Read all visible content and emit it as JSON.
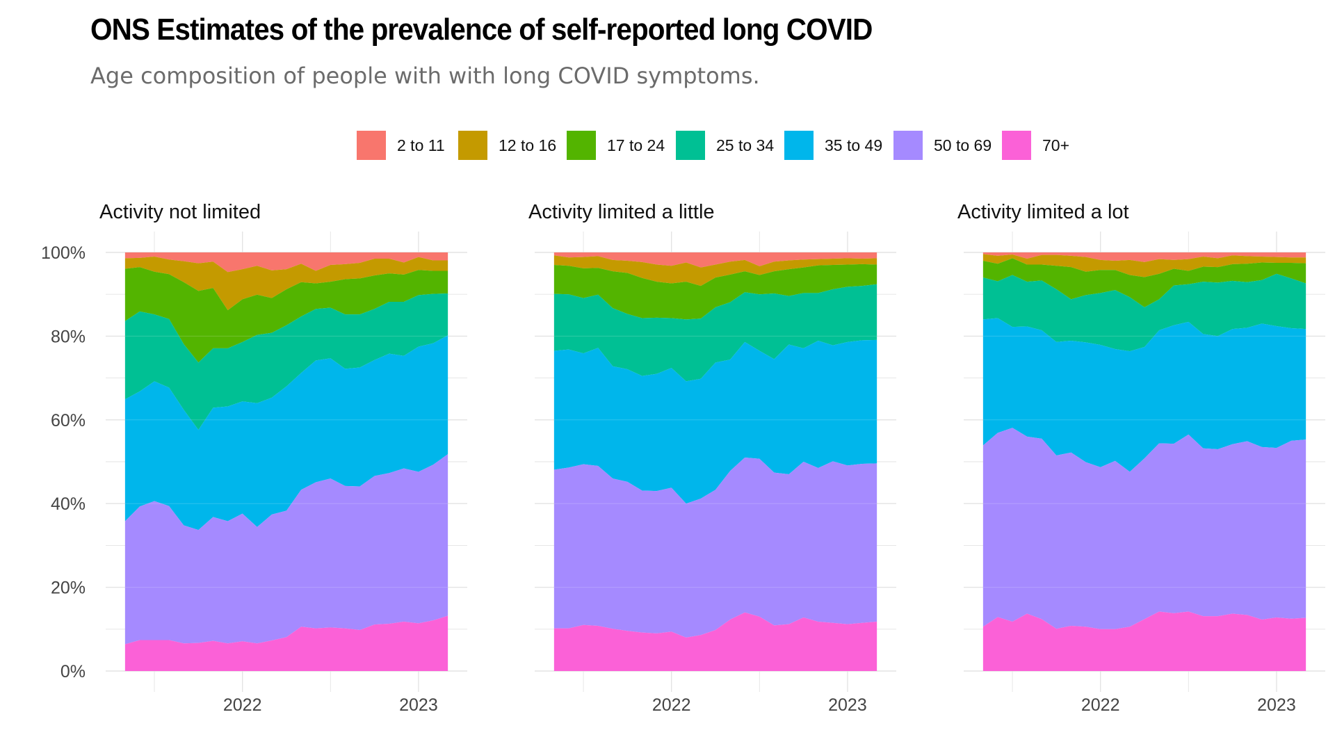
{
  "title": "ONS Estimates of the prevalence of self-reported long COVID",
  "subtitle": "Age composition of people with with long COVID symptoms.",
  "chart_data": {
    "type": "area",
    "stacked_percent": true,
    "legend_position": "top",
    "grid": true,
    "ylim": [
      0,
      100
    ],
    "y_ticks": [
      "0%",
      "20%",
      "40%",
      "60%",
      "80%",
      "100%"
    ],
    "x_ticks": [
      "2022",
      "2023"
    ],
    "x": [
      "2021-05",
      "2021-06",
      "2021-07",
      "2021-08",
      "2021-09",
      "2021-10",
      "2021-11",
      "2021-12",
      "2022-01",
      "2022-02",
      "2022-03",
      "2022-04",
      "2022-05",
      "2022-06",
      "2022-07",
      "2022-08",
      "2022-09",
      "2022-10",
      "2022-11",
      "2022-12",
      "2023-01",
      "2023-02",
      "2023-03"
    ],
    "series": [
      {
        "name": "2 to 11",
        "color": "#F8766D"
      },
      {
        "name": "12 to 16",
        "color": "#C49A00"
      },
      {
        "name": "17 to 24",
        "color": "#53B400"
      },
      {
        "name": "25 to 34",
        "color": "#00C094"
      },
      {
        "name": "35 to 49",
        "color": "#00B6EB"
      },
      {
        "name": "50 to 69",
        "color": "#A58AFF"
      },
      {
        "name": "70+",
        "color": "#FB61D7"
      }
    ],
    "panels": [
      {
        "title": "Activity not limited",
        "cumulative": {
          "70+": [
            6.4,
            7.4,
            7.4,
            7.4,
            6.6,
            6.7,
            7.2,
            6.6,
            7.1,
            6.6,
            7.3,
            8.1,
            10.6,
            10.2,
            10.4,
            10.2,
            9.8,
            11.1,
            11.3,
            11.8,
            11.4,
            12.1,
            13.2
          ],
          "50 to 69": [
            35.8,
            39.3,
            40.6,
            39.4,
            34.8,
            33.7,
            36.8,
            35.8,
            37.6,
            34.4,
            37.4,
            38.3,
            43.3,
            45.1,
            46.0,
            44.2,
            44.1,
            46.6,
            47.3,
            48.4,
            47.6,
            49.3,
            51.8
          ],
          "35 to 49": [
            64.9,
            66.8,
            69.2,
            67.7,
            62.4,
            57.6,
            62.9,
            63.2,
            64.4,
            64.0,
            65.3,
            68.0,
            71.2,
            74.2,
            74.7,
            72.2,
            72.5,
            74.3,
            75.8,
            75.3,
            77.5,
            78.3,
            80.2
          ],
          "25 to 34": [
            83.6,
            85.9,
            85.2,
            84.1,
            78.1,
            73.7,
            77.1,
            77.1,
            78.6,
            80.3,
            80.8,
            82.6,
            84.7,
            86.5,
            86.8,
            85.2,
            85.2,
            86.5,
            88.2,
            88.2,
            89.8,
            90.1,
            90.2
          ],
          "17 to 24": [
            96.1,
            96.5,
            95.4,
            94.8,
            92.9,
            90.8,
            91.5,
            86.2,
            88.8,
            89.9,
            89.1,
            91.2,
            92.9,
            92.6,
            93.0,
            93.6,
            93.8,
            94.5,
            95.0,
            94.7,
            95.8,
            95.6,
            95.6
          ],
          "12 to 16": [
            98.6,
            98.7,
            99.0,
            98.3,
            97.9,
            97.4,
            97.8,
            95.3,
            96.0,
            96.8,
            95.7,
            96.0,
            97.3,
            95.6,
            97.0,
            97.2,
            97.5,
            98.5,
            98.5,
            97.6,
            98.9,
            98.1,
            98.1
          ],
          "2 to 11": [
            100,
            100,
            100,
            100,
            100,
            100,
            100,
            100,
            100,
            100,
            100,
            100,
            100,
            100,
            100,
            100,
            100,
            100,
            100,
            100,
            100,
            100,
            100
          ]
        }
      },
      {
        "title": "Activity limited a little",
        "cumulative": {
          "70+": [
            10.2,
            10.2,
            11.0,
            10.8,
            10.1,
            9.6,
            9.2,
            9.0,
            9.4,
            8.0,
            8.6,
            9.8,
            12.3,
            14.0,
            13.0,
            10.9,
            11.2,
            12.8,
            11.8,
            11.5,
            11.2,
            11.5,
            11.8
          ],
          "50 to 69": [
            48.1,
            48.6,
            49.4,
            49.0,
            46.0,
            45.2,
            43.1,
            43.0,
            43.8,
            40.0,
            41.2,
            43.3,
            47.8,
            51.0,
            50.7,
            47.4,
            47.0,
            50.0,
            48.5,
            50.1,
            49.1,
            49.5,
            49.6
          ],
          "35 to 49": [
            76.5,
            76.8,
            75.9,
            77.2,
            72.8,
            72.1,
            70.5,
            71.0,
            72.4,
            69.2,
            69.8,
            73.7,
            74.4,
            78.6,
            76.5,
            74.5,
            78.0,
            77.1,
            78.9,
            77.8,
            78.6,
            79.0,
            79.1
          ],
          "25 to 34": [
            90.1,
            90.0,
            89.1,
            89.9,
            86.7,
            85.3,
            84.3,
            84.4,
            84.3,
            84.0,
            84.2,
            86.9,
            88.1,
            90.5,
            90.0,
            90.2,
            89.6,
            90.3,
            90.3,
            91.2,
            91.8,
            92.0,
            92.4
          ],
          "17 to 24": [
            97.0,
            96.8,
            96.2,
            96.3,
            95.5,
            95.1,
            93.9,
            93.0,
            92.6,
            93.0,
            92.0,
            94.0,
            94.7,
            95.5,
            94.6,
            95.5,
            96.0,
            96.4,
            96.9,
            97.0,
            97.1,
            97.2,
            97.1
          ],
          "12 to 16": [
            99.3,
            98.8,
            98.9,
            99.1,
            98.2,
            98.0,
            97.7,
            97.1,
            96.8,
            97.6,
            96.4,
            97.1,
            97.8,
            98.2,
            96.7,
            97.8,
            98.1,
            98.3,
            98.4,
            98.5,
            98.6,
            98.5,
            98.6
          ],
          "2 to 11": [
            100,
            100,
            100,
            100,
            100,
            100,
            100,
            100,
            100,
            100,
            100,
            100,
            100,
            100,
            100,
            100,
            100,
            100,
            100,
            100,
            100,
            100,
            100
          ]
        }
      },
      {
        "title": "Activity limited a lot",
        "cumulative": {
          "70+": [
            10.6,
            12.9,
            11.8,
            13.7,
            12.4,
            10.1,
            10.8,
            10.6,
            10.0,
            10.0,
            10.6,
            12.4,
            14.2,
            13.8,
            14.2,
            13.1,
            13.1,
            13.7,
            13.4,
            12.3,
            12.8,
            12.5,
            12.7
          ],
          "50 to 69": [
            53.9,
            56.9,
            58.1,
            56.0,
            55.5,
            51.5,
            52.2,
            49.9,
            48.7,
            50.2,
            47.6,
            50.8,
            54.4,
            54.3,
            56.5,
            53.2,
            53.0,
            54.2,
            54.9,
            53.5,
            53.3,
            55.0,
            55.3
          ],
          "35 to 49": [
            84.0,
            84.3,
            82.2,
            82.3,
            81.4,
            78.6,
            78.9,
            78.5,
            77.9,
            76.9,
            76.4,
            77.4,
            81.4,
            82.6,
            83.4,
            80.5,
            80.0,
            81.7,
            82.0,
            83.0,
            82.4,
            81.9,
            81.7
          ],
          "25 to 34": [
            94.0,
            93.1,
            94.6,
            93.0,
            93.3,
            91.2,
            88.8,
            89.8,
            90.3,
            91.0,
            89.3,
            86.9,
            88.8,
            92.1,
            92.4,
            93.0,
            92.8,
            93.2,
            92.9,
            93.4,
            94.9,
            93.8,
            92.6
          ],
          "17 to 24": [
            98.0,
            97.3,
            98.6,
            97.1,
            97.1,
            96.8,
            96.5,
            95.4,
            95.8,
            95.8,
            94.6,
            94.1,
            94.9,
            96.1,
            95.6,
            96.6,
            96.5,
            97.2,
            97.3,
            97.6,
            97.5,
            97.5,
            97.4
          ],
          "12 to 16": [
            99.6,
            99.2,
            99.5,
            98.5,
            99.4,
            99.4,
            99.2,
            98.9,
            98.2,
            98.0,
            98.2,
            97.7,
            98.4,
            98.2,
            98.4,
            99.0,
            98.6,
            99.3,
            99.1,
            99.0,
            98.9,
            98.8,
            98.8
          ],
          "2 to 11": [
            100,
            100,
            100,
            100,
            100,
            100,
            100,
            100,
            100,
            100,
            100,
            100,
            100,
            100,
            100,
            100,
            100,
            100,
            100,
            100,
            100,
            100,
            100
          ]
        }
      }
    ]
  }
}
